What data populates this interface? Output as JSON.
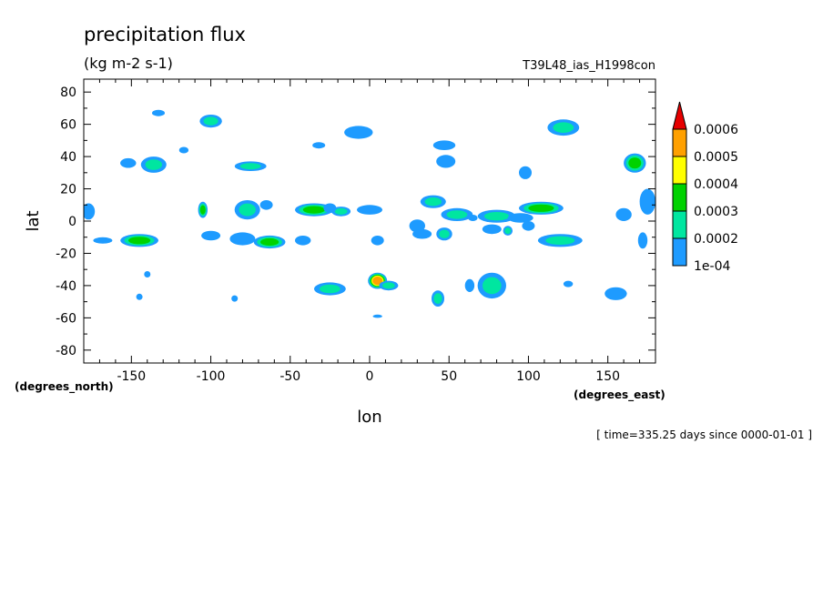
{
  "chart_data": {
    "type": "heatmap",
    "title": "precipitation flux",
    "subtitle": "(kg m-2 s-1)",
    "run_label": "T39L48_ias_H1998con",
    "xlabel": "lon",
    "ylabel": "lat",
    "x_unit_label": "(degrees_east)",
    "y_unit_label": "(degrees_north)",
    "time_label": "[ time=335.25 days since 0000-01-01 ]",
    "xlim": [
      -180,
      180
    ],
    "ylim": [
      -88,
      88
    ],
    "x_ticks": [
      -150,
      -100,
      -50,
      0,
      50,
      100,
      150
    ],
    "x_tick_labels": [
      "-150",
      "-100",
      "-50",
      "0",
      "50",
      "100",
      "150"
    ],
    "y_ticks": [
      -80,
      -60,
      -40,
      -20,
      0,
      20,
      40,
      60,
      80
    ],
    "y_tick_labels": [
      "-80",
      "-60",
      "-40",
      "-20",
      "0",
      "20",
      "40",
      "60",
      "80"
    ],
    "colorbar": {
      "levels": [
        0.0001,
        0.0002,
        0.0003,
        0.0004,
        0.0005,
        0.0006
      ],
      "level_labels": [
        "1e-04",
        "0.0002",
        "0.0003",
        "0.0004",
        "0.0005",
        "0.0006"
      ],
      "colors": [
        "#1e9bff",
        "#00e6a0",
        "#00d200",
        "#ffff00",
        "#ffa000",
        "#e60000"
      ],
      "extend": "max"
    },
    "blobs": [
      {
        "lon": -133,
        "lat": 67,
        "rx": 4,
        "ry": 2,
        "level": 0
      },
      {
        "lon": -100,
        "lat": 62,
        "rx": 7,
        "ry": 4,
        "level": 1
      },
      {
        "lon": -152,
        "lat": 36,
        "rx": 5,
        "ry": 3,
        "level": 0
      },
      {
        "lon": -136,
        "lat": 35,
        "rx": 8,
        "ry": 5,
        "level": 1
      },
      {
        "lon": -117,
        "lat": 44,
        "rx": 3,
        "ry": 2,
        "level": 0
      },
      {
        "lon": -75,
        "lat": 34,
        "rx": 10,
        "ry": 3,
        "level": 1
      },
      {
        "lon": -32,
        "lat": 47,
        "rx": 4,
        "ry": 2,
        "level": 0
      },
      {
        "lon": -7,
        "lat": 55,
        "rx": 9,
        "ry": 4,
        "level": 0
      },
      {
        "lon": 47,
        "lat": 47,
        "rx": 7,
        "ry": 3,
        "level": 0
      },
      {
        "lon": 48,
        "lat": 37,
        "rx": 6,
        "ry": 4,
        "level": 0
      },
      {
        "lon": 98,
        "lat": 30,
        "rx": 4,
        "ry": 4,
        "level": 0
      },
      {
        "lon": 122,
        "lat": 58,
        "rx": 10,
        "ry": 5,
        "level": 1
      },
      {
        "lon": 167,
        "lat": 36,
        "rx": 7,
        "ry": 6,
        "level": 2
      },
      {
        "lon": -177,
        "lat": 6,
        "rx": 4,
        "ry": 5,
        "level": 0
      },
      {
        "lon": -105,
        "lat": 7,
        "rx": 3,
        "ry": 5,
        "level": 2
      },
      {
        "lon": -77,
        "lat": 7,
        "rx": 8,
        "ry": 6,
        "level": 1
      },
      {
        "lon": -65,
        "lat": 10,
        "rx": 4,
        "ry": 3,
        "level": 0
      },
      {
        "lon": -35,
        "lat": 7,
        "rx": 12,
        "ry": 4,
        "level": 2
      },
      {
        "lon": -18,
        "lat": 6,
        "rx": 6,
        "ry": 3,
        "level": 1
      },
      {
        "lon": 0,
        "lat": 7,
        "rx": 8,
        "ry": 3,
        "level": 0
      },
      {
        "lon": 40,
        "lat": 12,
        "rx": 8,
        "ry": 4,
        "level": 1
      },
      {
        "lon": 55,
        "lat": 4,
        "rx": 10,
        "ry": 4,
        "level": 1
      },
      {
        "lon": 80,
        "lat": 3,
        "rx": 12,
        "ry": 4,
        "level": 1
      },
      {
        "lon": 108,
        "lat": 8,
        "rx": 14,
        "ry": 4,
        "level": 2
      },
      {
        "lon": 95,
        "lat": 2,
        "rx": 8,
        "ry": 3,
        "level": 0
      },
      {
        "lon": 160,
        "lat": 4,
        "rx": 5,
        "ry": 4,
        "level": 0
      },
      {
        "lon": 175,
        "lat": 12,
        "rx": 5,
        "ry": 8,
        "level": 0
      },
      {
        "lon": -168,
        "lat": -12,
        "rx": 6,
        "ry": 2,
        "level": 0
      },
      {
        "lon": -145,
        "lat": -12,
        "rx": 12,
        "ry": 4,
        "level": 2
      },
      {
        "lon": -100,
        "lat": -9,
        "rx": 6,
        "ry": 3,
        "level": 0
      },
      {
        "lon": -80,
        "lat": -11,
        "rx": 8,
        "ry": 4,
        "level": 0
      },
      {
        "lon": -63,
        "lat": -13,
        "rx": 10,
        "ry": 4,
        "level": 2
      },
      {
        "lon": -42,
        "lat": -12,
        "rx": 5,
        "ry": 3,
        "level": 0
      },
      {
        "lon": 5,
        "lat": -12,
        "rx": 4,
        "ry": 3,
        "level": 0
      },
      {
        "lon": 33,
        "lat": -8,
        "rx": 6,
        "ry": 3,
        "level": 0
      },
      {
        "lon": 47,
        "lat": -8,
        "rx": 5,
        "ry": 4,
        "level": 1
      },
      {
        "lon": 77,
        "lat": -5,
        "rx": 6,
        "ry": 3,
        "level": 0
      },
      {
        "lon": 87,
        "lat": -6,
        "rx": 3,
        "ry": 3,
        "level": 1
      },
      {
        "lon": 120,
        "lat": -12,
        "rx": 14,
        "ry": 4,
        "level": 1
      },
      {
        "lon": 172,
        "lat": -12,
        "rx": 3,
        "ry": 5,
        "level": 0
      },
      {
        "lon": 5,
        "lat": -37,
        "rx": 6,
        "ry": 5,
        "level": 4
      },
      {
        "lon": 12,
        "lat": -40,
        "rx": 6,
        "ry": 3,
        "level": 1
      },
      {
        "lon": -25,
        "lat": -42,
        "rx": 10,
        "ry": 4,
        "level": 1
      },
      {
        "lon": 43,
        "lat": -48,
        "rx": 4,
        "ry": 5,
        "level": 1
      },
      {
        "lon": 77,
        "lat": -40,
        "rx": 9,
        "ry": 8,
        "level": 1
      },
      {
        "lon": 63,
        "lat": -40,
        "rx": 3,
        "ry": 4,
        "level": 0
      },
      {
        "lon": 125,
        "lat": -39,
        "rx": 3,
        "ry": 2,
        "level": 0
      },
      {
        "lon": 155,
        "lat": -45,
        "rx": 7,
        "ry": 4,
        "level": 0
      },
      {
        "lon": -145,
        "lat": -47,
        "rx": 2,
        "ry": 2,
        "level": 0
      },
      {
        "lon": -85,
        "lat": -48,
        "rx": 2,
        "ry": 2,
        "level": 0
      },
      {
        "lon": 5,
        "lat": -59,
        "rx": 3,
        "ry": 1,
        "level": 0
      },
      {
        "lon": -140,
        "lat": -33,
        "rx": 2,
        "ry": 2,
        "level": 0
      },
      {
        "lon": -25,
        "lat": 8,
        "rx": 4,
        "ry": 3,
        "level": 0
      },
      {
        "lon": 30,
        "lat": -3,
        "rx": 5,
        "ry": 4,
        "level": 0
      },
      {
        "lon": 100,
        "lat": -3,
        "rx": 4,
        "ry": 3,
        "level": 0
      },
      {
        "lon": 65,
        "lat": 2,
        "rx": 3,
        "ry": 2,
        "level": 0
      }
    ]
  }
}
